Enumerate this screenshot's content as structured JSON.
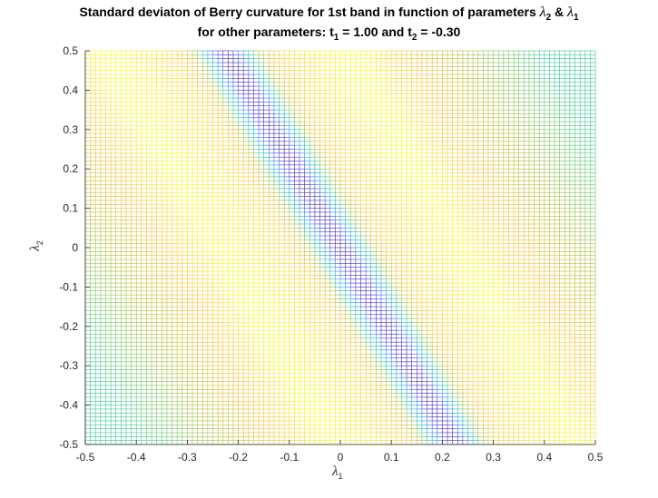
{
  "title": {
    "line1_prefix": "Standard deviaton of Berry curvature for 1st band in function of parameters ",
    "line1_sym1": "λ",
    "line1_sub1": "2",
    "line1_mid": " & ",
    "line1_sym2": "λ",
    "line1_sub2": "1",
    "line2_prefix": "for other parameters: t",
    "line2_sub1": "1",
    "line2_mid": " = 1.00 and t",
    "line2_sub2": "2",
    "line2_suffix": " = -0.30"
  },
  "xlabel": {
    "symbol": "λ",
    "sub": "1"
  },
  "ylabel": {
    "symbol": "λ",
    "sub": "2"
  },
  "chart_data": {
    "type": "heatmap",
    "style": "colored mesh grid lines (parula colormap)",
    "xlim": [
      -0.5,
      0.5
    ],
    "ylim": [
      -0.5,
      0.5
    ],
    "xticks": [
      "-0.5",
      "-0.4",
      "-0.3",
      "-0.2",
      "-0.1",
      "0",
      "0.1",
      "0.2",
      "0.3",
      "0.4",
      "0.5"
    ],
    "yticks": [
      "-0.5",
      "-0.4",
      "-0.3",
      "-0.2",
      "-0.1",
      "0",
      "0.1",
      "0.2",
      "0.3",
      "0.4",
      "0.5"
    ],
    "grid_step": 0.01,
    "colormap": [
      "#3e26a8",
      "#4745f8",
      "#2f80fa",
      "#1ea8df",
      "#19bfb7",
      "#61c969",
      "#b7bd32",
      "#fcbf2e",
      "#f9fb15"
    ],
    "feature": {
      "description": "minimum (dark) along diagonal band",
      "valley_line": {
        "x_at_y_top": -0.225,
        "x_at_y_bottom": 0.225
      },
      "valley_halfwidth": 0.025,
      "bright_ridge_distance": 0.22,
      "far_edge_level": 0.55
    }
  },
  "colors": {
    "axis": "#262626",
    "background": "#ffffff"
  }
}
